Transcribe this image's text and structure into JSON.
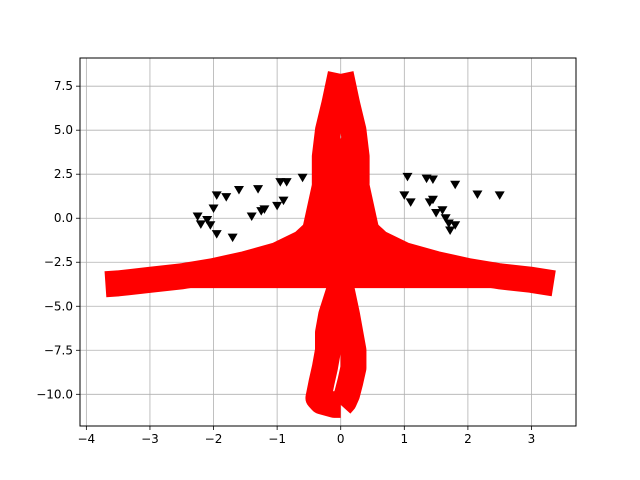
{
  "chart_data": {
    "type": "scatter",
    "title": "",
    "xlabel": "",
    "ylabel": "",
    "xlim": [
      -4.1,
      3.7
    ],
    "ylim": [
      -11.8,
      9.1
    ],
    "grid": true,
    "legend": "none",
    "x_ticks": [
      -4,
      -3,
      -2,
      -1,
      0,
      1,
      2,
      3
    ],
    "x_tick_labels": [
      "−4",
      "−3",
      "−2",
      "−1",
      "0",
      "1",
      "2",
      "3"
    ],
    "y_ticks": [
      7.5,
      5.0,
      2.5,
      0.0,
      -2.5,
      -5.0,
      -7.5,
      -10.0
    ],
    "y_tick_labels": [
      "7.5",
      "5.0",
      "2.5",
      "0.0",
      "−2.5",
      "−5.0",
      "−7.5",
      "−10.0"
    ],
    "series": [
      {
        "marker": "triangle_down",
        "color": "#000000",
        "points": [
          [
            -2.25,
            0.1
          ],
          [
            -2.2,
            -0.35
          ],
          [
            -2.1,
            -0.1
          ],
          [
            -2.05,
            -0.4
          ],
          [
            -2.0,
            0.55
          ],
          [
            -1.95,
            1.3
          ],
          [
            -1.95,
            -0.9
          ],
          [
            -1.8,
            1.2
          ],
          [
            -1.7,
            -1.1
          ],
          [
            -1.6,
            1.6
          ],
          [
            -1.4,
            0.1
          ],
          [
            -1.3,
            1.65
          ],
          [
            -1.25,
            0.4
          ],
          [
            -1.2,
            0.5
          ],
          [
            -1.0,
            0.7
          ],
          [
            -0.95,
            2.05
          ],
          [
            -0.9,
            1.0
          ],
          [
            -0.85,
            2.05
          ],
          [
            -0.6,
            2.3
          ],
          [
            1.0,
            1.3
          ],
          [
            1.05,
            2.35
          ],
          [
            1.1,
            0.9
          ],
          [
            1.35,
            2.25
          ],
          [
            1.4,
            0.9
          ],
          [
            1.45,
            1.05
          ],
          [
            1.45,
            2.2
          ],
          [
            1.5,
            0.3
          ],
          [
            1.6,
            0.45
          ],
          [
            1.65,
            0.0
          ],
          [
            1.7,
            -0.3
          ],
          [
            1.72,
            -0.7
          ],
          [
            1.8,
            1.9
          ],
          [
            1.8,
            -0.4
          ],
          [
            2.15,
            1.35
          ],
          [
            2.5,
            1.3
          ]
        ]
      },
      {
        "marker": "thick_line",
        "color": "#ff0000",
        "branches": [
          {
            "name_hidden": "",
            "x": [
              0.0,
              -0.3,
              -0.6,
              -1.0,
              -1.5,
              -2.0,
              -2.5,
              -3.0,
              -3.5,
              -3.7
            ],
            "y": [
              1.2,
              -0.4,
              -1.4,
              -2.1,
              -2.6,
              -3.0,
              -3.3,
              -3.5,
              -3.7,
              -3.75
            ]
          },
          {
            "name_hidden": "",
            "x": [
              0.0,
              0.3,
              0.6,
              1.0,
              1.5,
              2.0,
              2.5,
              3.0,
              3.35
            ],
            "y": [
              1.2,
              -0.4,
              -1.4,
              -2.1,
              -2.6,
              -3.0,
              -3.3,
              -3.5,
              -3.7
            ]
          },
          {
            "name_hidden": "",
            "x": [
              0.0,
              -0.1,
              -0.2,
              -0.25,
              -0.25,
              -0.2,
              0.0,
              0.2,
              0.25,
              0.25,
              0.2,
              0.1,
              0.0
            ],
            "y": [
              8.2,
              6.5,
              5.0,
              3.5,
              2.0,
              0.5,
              -0.8,
              0.5,
              2.0,
              3.5,
              5.0,
              6.5,
              8.2
            ]
          },
          {
            "name_hidden": "",
            "x": [
              0.0,
              -0.15,
              -0.2,
              -0.2,
              -0.25,
              -0.3,
              -0.35,
              -0.3,
              -0.2,
              -0.1,
              0.0
            ],
            "y": [
              -3.8,
              -5.5,
              -6.5,
              -7.5,
              -8.5,
              -9.3,
              -10.2,
              -10.4,
              -10.5,
              -10.6,
              -10.6
            ]
          },
          {
            "name_hidden": "",
            "x": [
              0.0,
              0.1,
              0.15,
              0.2,
              0.2,
              0.15,
              0.1,
              0.05,
              0.0
            ],
            "y": [
              -3.8,
              -5.5,
              -6.5,
              -7.5,
              -8.5,
              -9.3,
              -10.0,
              -10.4,
              -10.6
            ]
          }
        ]
      }
    ]
  }
}
